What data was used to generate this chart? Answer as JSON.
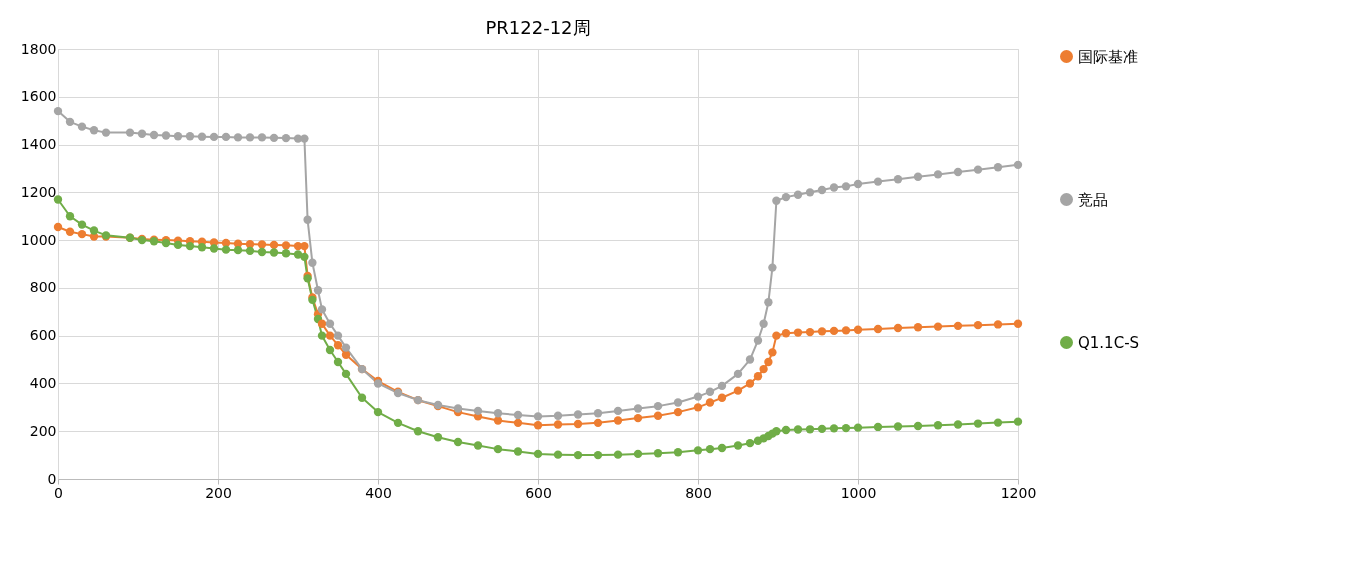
{
  "chart_data": {
    "type": "line",
    "title": "PR122-12周",
    "x": [
      0,
      15,
      30,
      45,
      60,
      90,
      105,
      120,
      135,
      150,
      165,
      180,
      195,
      210,
      225,
      240,
      255,
      270,
      285,
      300,
      308,
      312,
      318,
      325,
      330,
      340,
      350,
      360,
      380,
      400,
      425,
      450,
      475,
      500,
      525,
      550,
      575,
      600,
      625,
      650,
      675,
      700,
      725,
      750,
      775,
      800,
      815,
      830,
      850,
      865,
      875,
      882,
      888,
      893,
      898,
      910,
      925,
      940,
      955,
      970,
      985,
      1000,
      1025,
      1050,
      1075,
      1100,
      1125,
      1150,
      1175,
      1200
    ],
    "series": [
      {
        "name": "国际基准",
        "color": "#ed7d31",
        "values": [
          1055,
          1035,
          1025,
          1015,
          1015,
          1010,
          1005,
          1002,
          1000,
          998,
          995,
          993,
          990,
          988,
          985,
          983,
          982,
          980,
          978,
          975,
          975,
          850,
          760,
          690,
          650,
          600,
          560,
          520,
          460,
          410,
          365,
          330,
          305,
          280,
          262,
          245,
          235,
          225,
          228,
          230,
          235,
          245,
          255,
          265,
          280,
          300,
          320,
          340,
          370,
          400,
          430,
          460,
          490,
          530,
          600,
          610,
          613,
          615,
          618,
          620,
          622,
          625,
          628,
          632,
          635,
          638,
          641,
          644,
          647,
          650
        ]
      },
      {
        "name": "竞品",
        "color": "#a5a5a5",
        "values": [
          1540,
          1495,
          1475,
          1460,
          1450,
          1450,
          1445,
          1440,
          1438,
          1435,
          1435,
          1433,
          1432,
          1432,
          1430,
          1430,
          1430,
          1428,
          1427,
          1425,
          1425,
          1085,
          905,
          790,
          710,
          650,
          600,
          550,
          460,
          400,
          360,
          330,
          310,
          295,
          285,
          275,
          268,
          262,
          265,
          270,
          275,
          285,
          295,
          305,
          320,
          345,
          365,
          390,
          440,
          500,
          580,
          650,
          740,
          885,
          1165,
          1180,
          1190,
          1200,
          1210,
          1220,
          1225,
          1235,
          1245,
          1255,
          1265,
          1275,
          1285,
          1295,
          1305,
          1315
        ]
      },
      {
        "name": "Q1.1C-S",
        "color": "#70ad47",
        "values": [
          1170,
          1100,
          1065,
          1040,
          1020,
          1010,
          1000,
          995,
          988,
          980,
          975,
          970,
          965,
          960,
          958,
          955,
          950,
          948,
          945,
          940,
          930,
          840,
          750,
          670,
          600,
          540,
          490,
          440,
          340,
          280,
          235,
          200,
          175,
          155,
          140,
          125,
          115,
          105,
          102,
          100,
          100,
          102,
          105,
          108,
          112,
          120,
          125,
          130,
          140,
          150,
          160,
          170,
          180,
          190,
          200,
          205,
          207,
          208,
          210,
          212,
          213,
          215,
          218,
          220,
          222,
          225,
          228,
          232,
          236,
          240
        ]
      }
    ],
    "xlim": [
      0,
      1200
    ],
    "xticks": [
      0,
      200,
      400,
      600,
      800,
      1000,
      1200
    ],
    "ylim": [
      0,
      1800
    ],
    "yticks": [
      0,
      200,
      400,
      600,
      800,
      1000,
      1200,
      1400,
      1600,
      1800
    ],
    "grid": true,
    "legend": "right",
    "marker": "circle",
    "line_style": "solid"
  }
}
